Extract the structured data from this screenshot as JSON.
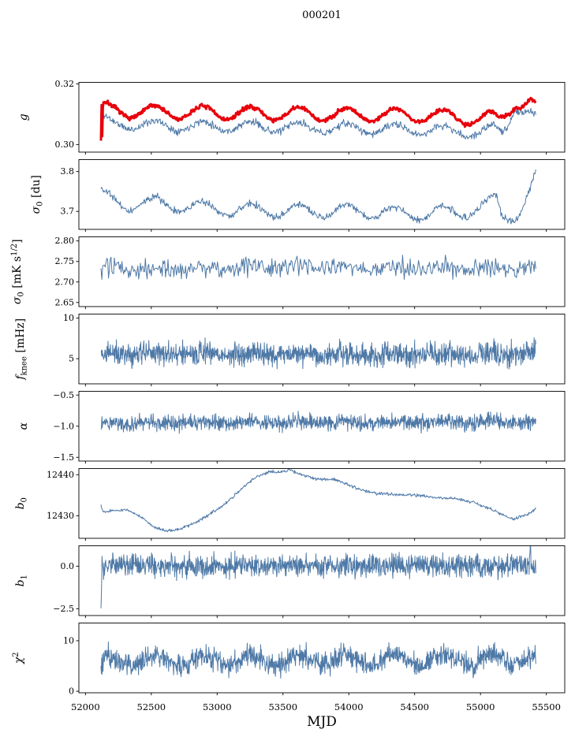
{
  "title": "000201",
  "axes": {
    "xlabel": "MJD",
    "xlim": [
      51950,
      55640
    ],
    "x_data_range": [
      52118,
      55420
    ],
    "xticks": [
      {
        "v": 52000,
        "label": "52000"
      },
      {
        "v": 52500,
        "label": "52500"
      },
      {
        "v": 53000,
        "label": "53000"
      },
      {
        "v": 53500,
        "label": "53500"
      },
      {
        "v": 54000,
        "label": "54000"
      },
      {
        "v": 54500,
        "label": "54500"
      },
      {
        "v": 55000,
        "label": "55000"
      },
      {
        "v": 55500,
        "label": "55500"
      }
    ]
  },
  "colors": {
    "line": "#4e79a7",
    "highlight": "#e8000b",
    "spine": "#000000"
  },
  "chart_data": [
    {
      "id": "g",
      "type": "line",
      "ylabel": "g",
      "ylabel_x": 34,
      "ylabel_rich": [
        {
          "t": "g",
          "style": "italic"
        }
      ],
      "ylim": [
        0.2975,
        0.3205
      ],
      "yticks": [
        {
          "v": 0.32,
          "label": "0.32"
        },
        {
          "v": 0.3,
          "label": "0.30"
        }
      ],
      "series": [
        {
          "name": "gain-fit",
          "color": "#4e79a7",
          "lw": 1.0,
          "seed": 11,
          "n": 700,
          "noise": 0.0006,
          "osc_amp": 0.0016,
          "osc_period": 365,
          "osc_phase": 52069,
          "trend": [
            [
              52118,
              0.2998
            ],
            [
              52124,
              0.3085
            ],
            [
              52200,
              0.3068
            ],
            [
              52600,
              0.3062
            ],
            [
              53100,
              0.306
            ],
            [
              53600,
              0.3056
            ],
            [
              54100,
              0.3052
            ],
            [
              54600,
              0.3048
            ],
            [
              54900,
              0.3042
            ],
            [
              55000,
              0.3038
            ],
            [
              55100,
              0.305
            ],
            [
              55150,
              0.304
            ],
            [
              55200,
              0.3062
            ],
            [
              55260,
              0.3125
            ],
            [
              55330,
              0.3115
            ],
            [
              55420,
              0.3085
            ]
          ]
        },
        {
          "name": "gain-smoothed",
          "color": "#e8000b",
          "lw": 3.0,
          "seed": 7,
          "n": 700,
          "noise": 0.00035,
          "osc_amp": 0.0022,
          "osc_period": 365,
          "osc_phase": 52069,
          "trend": [
            [
              52118,
              0.3
            ],
            [
              52122,
              0.313
            ],
            [
              52127,
              0.3002
            ],
            [
              52133,
              0.312
            ],
            [
              52200,
              0.3112
            ],
            [
              52600,
              0.3106
            ],
            [
              53100,
              0.3104
            ],
            [
              53600,
              0.3101
            ],
            [
              54100,
              0.3099
            ],
            [
              54600,
              0.3096
            ],
            [
              54900,
              0.3089
            ],
            [
              55000,
              0.3083
            ],
            [
              55060,
              0.3092
            ],
            [
              55130,
              0.3079
            ],
            [
              55180,
              0.3094
            ],
            [
              55260,
              0.314
            ],
            [
              55330,
              0.3135
            ],
            [
              55380,
              0.3145
            ],
            [
              55420,
              0.3115
            ]
          ]
        }
      ]
    },
    {
      "id": "sigma0-du",
      "type": "line",
      "ylabel": "σ0 [du]",
      "ylabel_x": 50,
      "ylabel_rich": [
        {
          "t": "σ",
          "style": "italic"
        },
        {
          "t": "0",
          "sub": true
        },
        {
          "t": " [du]"
        }
      ],
      "ylim": [
        3.655,
        3.83
      ],
      "yticks": [
        {
          "v": 3.8,
          "label": "3.8"
        },
        {
          "v": 3.7,
          "label": "3.7"
        }
      ],
      "series": [
        {
          "name": "sigma0-du",
          "color": "#4e79a7",
          "lw": 1.0,
          "seed": 21,
          "n": 700,
          "noise": 0.0045,
          "osc_amp": 0.016,
          "osc_period": 365,
          "osc_phase": 52069,
          "trend": [
            [
              52118,
              3.748
            ],
            [
              52140,
              3.736
            ],
            [
              52300,
              3.716
            ],
            [
              52500,
              3.722
            ],
            [
              53000,
              3.706
            ],
            [
              53500,
              3.7
            ],
            [
              54000,
              3.701
            ],
            [
              54500,
              3.694
            ],
            [
              54900,
              3.7
            ],
            [
              55050,
              3.716
            ],
            [
              55120,
              3.732
            ],
            [
              55170,
              3.682
            ],
            [
              55220,
              3.688
            ],
            [
              55300,
              3.702
            ],
            [
              55380,
              3.756
            ],
            [
              55420,
              3.79
            ]
          ]
        }
      ]
    },
    {
      "id": "sigma0-mK",
      "type": "line",
      "ylabel": "σ0 [mK s1/2]",
      "ylabel_x": 26,
      "ylabel_rich": [
        {
          "t": "σ",
          "style": "italic"
        },
        {
          "t": "0",
          "sub": true
        },
        {
          "t": " [mK s"
        },
        {
          "t": "1/2",
          "sup": true
        },
        {
          "t": "]"
        }
      ],
      "ylim": [
        2.64,
        2.81
      ],
      "yticks": [
        {
          "v": 2.8,
          "label": "2.80"
        },
        {
          "v": 2.75,
          "label": "2.75"
        },
        {
          "v": 2.7,
          "label": "2.70"
        },
        {
          "v": 2.65,
          "label": "2.65"
        }
      ],
      "series": [
        {
          "name": "sigma0-mK",
          "color": "#4e79a7",
          "lw": 1.0,
          "seed": 31,
          "n": 520,
          "noise": 0.012,
          "osc_amp": 0.004,
          "osc_period": 365,
          "osc_phase": 52069,
          "trend": [
            [
              52118,
              2.712
            ],
            [
              52135,
              2.732
            ],
            [
              53500,
              2.736
            ],
            [
              55350,
              2.731
            ],
            [
              55420,
              2.736
            ]
          ]
        }
      ]
    },
    {
      "id": "fknee",
      "type": "line",
      "ylabel": "fknee [mHz]",
      "ylabel_x": 30,
      "ylabel_rich": [
        {
          "t": "f",
          "style": "italic"
        },
        {
          "t": "knee",
          "sub": true
        },
        {
          "t": " [mHz]"
        }
      ],
      "ylim": [
        1.9,
        10.5
      ],
      "yticks": [
        {
          "v": 10,
          "label": "10"
        },
        {
          "v": 5,
          "label": "5"
        }
      ],
      "series": [
        {
          "name": "fknee",
          "color": "#4e79a7",
          "lw": 1.0,
          "seed": 41,
          "n": 1300,
          "noise": 0.72,
          "osc_amp": 0.15,
          "osc_period": 365,
          "osc_phase": 52069,
          "trend": [
            [
              52118,
              5.2
            ],
            [
              52132,
              5.6
            ],
            [
              55400,
              5.5
            ],
            [
              55420,
              6.0
            ]
          ]
        }
      ]
    },
    {
      "id": "alpha",
      "type": "line",
      "ylabel": "α",
      "ylabel_x": 34,
      "ylabel_rich": [
        {
          "t": "α",
          "style": "italic"
        }
      ],
      "ylim": [
        -1.56,
        -0.44
      ],
      "yticks": [
        {
          "v": -0.5,
          "label": "−0.5"
        },
        {
          "v": -1.0,
          "label": "−1.0"
        },
        {
          "v": -1.5,
          "label": "−1.5"
        }
      ],
      "series": [
        {
          "name": "alpha",
          "color": "#4e79a7",
          "lw": 1.0,
          "seed": 51,
          "n": 1300,
          "noise": 0.062,
          "osc_amp": 0.012,
          "osc_period": 365,
          "osc_phase": 52069,
          "trend": [
            [
              52118,
              -0.95
            ],
            [
              55420,
              -0.93
            ]
          ]
        }
      ]
    },
    {
      "id": "b0",
      "type": "line",
      "ylabel": "b0",
      "ylabel_x": 30,
      "ylabel_rich": [
        {
          "t": "b",
          "style": "italic"
        },
        {
          "t": "0",
          "sub": true
        }
      ],
      "ylim": [
        12424.5,
        12441.5
      ],
      "yticks": [
        {
          "v": 12440,
          "label": "12440"
        },
        {
          "v": 12430,
          "label": "12430"
        }
      ],
      "series": [
        {
          "name": "b0",
          "color": "#4e79a7",
          "lw": 1.0,
          "seed": 61,
          "n": 800,
          "noise": 0.18,
          "osc_amp": 0,
          "osc_period": 365,
          "osc_phase": 52069,
          "trend": [
            [
              52118,
              12432.5
            ],
            [
              52135,
              12430.8
            ],
            [
              52200,
              12431.2
            ],
            [
              52300,
              12431.5
            ],
            [
              52420,
              12429.8
            ],
            [
              52520,
              12427.2
            ],
            [
              52620,
              12426.2
            ],
            [
              52720,
              12426.8
            ],
            [
              52850,
              12428.5
            ],
            [
              53000,
              12431.5
            ],
            [
              53100,
              12434.0
            ],
            [
              53200,
              12437.0
            ],
            [
              53300,
              12439.5
            ],
            [
              53400,
              12440.8
            ],
            [
              53480,
              12440.5
            ],
            [
              53550,
              12441.2
            ],
            [
              53650,
              12439.8
            ],
            [
              53750,
              12439.0
            ],
            [
              53900,
              12438.8
            ],
            [
              54000,
              12437.5
            ],
            [
              54100,
              12436.2
            ],
            [
              54200,
              12435.5
            ],
            [
              54350,
              12435.2
            ],
            [
              54500,
              12435.0
            ],
            [
              54650,
              12434.5
            ],
            [
              54800,
              12434.2
            ],
            [
              54950,
              12433.2
            ],
            [
              55050,
              12432.0
            ],
            [
              55150,
              12430.5
            ],
            [
              55250,
              12429.2
            ],
            [
              55320,
              12430.0
            ],
            [
              55380,
              12430.5
            ],
            [
              55420,
              12431.8
            ]
          ]
        }
      ]
    },
    {
      "id": "b1",
      "type": "line",
      "ylabel": "b1",
      "ylabel_x": 30,
      "ylabel_rich": [
        {
          "t": "b",
          "style": "italic"
        },
        {
          "t": "1",
          "sub": true
        }
      ],
      "ylim": [
        -2.9,
        1.2
      ],
      "yticks": [
        {
          "v": 0.0,
          "label": "0.0"
        },
        {
          "v": -2.5,
          "label": "−2.5"
        }
      ],
      "series": [
        {
          "name": "b1",
          "color": "#4e79a7",
          "lw": 1.0,
          "seed": 71,
          "n": 1300,
          "noise": 0.32,
          "osc_amp": 0,
          "osc_period": 365,
          "osc_phase": 52069,
          "trend": [
            [
              52118,
              -2.5
            ],
            [
              52126,
              0.35
            ],
            [
              52132,
              -0.45
            ],
            [
              52140,
              0.05
            ],
            [
              55370,
              0.02
            ],
            [
              55378,
              1.45
            ],
            [
              55386,
              -0.1
            ],
            [
              55420,
              0.0
            ]
          ]
        }
      ]
    },
    {
      "id": "chi2",
      "type": "line",
      "ylabel": "χ2",
      "ylabel_x": 28,
      "ylabel_rich": [
        {
          "t": "χ",
          "style": "italic"
        },
        {
          "t": "2",
          "sup": true
        }
      ],
      "ylim": [
        -0.3,
        13.5
      ],
      "yticks": [
        {
          "v": 10,
          "label": "10"
        },
        {
          "v": 0,
          "label": "0"
        }
      ],
      "series": [
        {
          "name": "chi2",
          "color": "#4e79a7",
          "lw": 1.0,
          "seed": 81,
          "n": 1300,
          "noise": 1.1,
          "osc_amp": 1.0,
          "osc_period": 365,
          "osc_phase": 52069,
          "trend": [
            [
              52118,
              4.2
            ],
            [
              52142,
              6.0
            ],
            [
              55420,
              6.2
            ]
          ]
        }
      ]
    }
  ]
}
